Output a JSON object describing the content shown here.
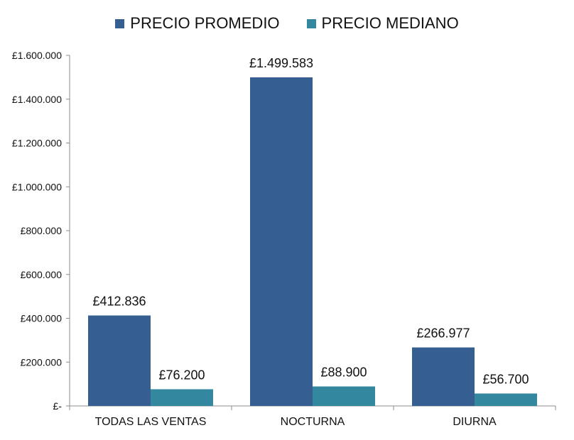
{
  "colors": {
    "promedio": "#355f91",
    "mediano": "#33889f",
    "axis": "#8c8c8c"
  },
  "chart_data": {
    "type": "bar",
    "categories": [
      "TODAS LAS VENTAS",
      "NOCTURNA",
      "DIURNA"
    ],
    "series": [
      {
        "name": "PRECIO PROMEDIO",
        "values": [
          412836,
          1499583,
          266977
        ],
        "labels": [
          "£412.836",
          "£1.499.583",
          "£266.977"
        ]
      },
      {
        "name": "PRECIO MEDIANO",
        "values": [
          76200,
          88900,
          56700
        ],
        "labels": [
          "£76.200",
          "£88.900",
          "£56.700"
        ]
      }
    ],
    "yticks": [
      0,
      200000,
      400000,
      600000,
      800000,
      1000000,
      1200000,
      1400000,
      1600000
    ],
    "ytick_labels": [
      "£-",
      "£200.000",
      "£400.000",
      "£600.000",
      "£800.000",
      "£1.000.000",
      "£1.200.000",
      "£1.400.000",
      "£1.600.000"
    ],
    "ylim": [
      0,
      1600000
    ],
    "grid": false,
    "legend_position": "top-center"
  }
}
